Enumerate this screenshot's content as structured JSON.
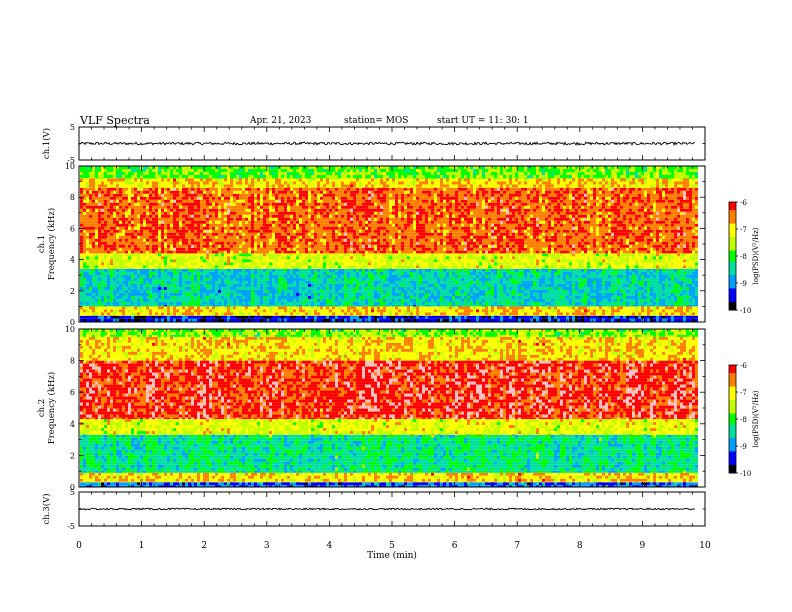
{
  "header": {
    "title": "VLF Spectra",
    "date": "Apr. 21, 2023",
    "station": "station= MOS",
    "start": "start UT =  11: 30: 1"
  },
  "colors": {
    "scale": [
      "#000000",
      "#0000ff",
      "#00a0ff",
      "#00e0a0",
      "#00ff00",
      "#c0ff00",
      "#ffff00",
      "#ff8000",
      "#ff0000",
      "#ffc0c0",
      "#ffffff"
    ]
  },
  "chart_data": [
    {
      "type": "line",
      "panel": "ch1-waveform",
      "ylabel": "ch.1(V)",
      "ylim": [
        -5,
        5
      ],
      "yticks": [
        "5",
        "-5"
      ],
      "xlim": [
        0,
        10
      ],
      "baseline_value": 0,
      "noise_amplitude": 0.4,
      "x_end": 9.85
    },
    {
      "type": "heatmap",
      "panel": "ch1-spectrogram",
      "ylabel": "ch.1\nFrequency (kHz)",
      "ylim": [
        0,
        10
      ],
      "yticks": [
        "0",
        "2",
        "4",
        "6",
        "8",
        "10"
      ],
      "xlim": [
        0,
        10
      ],
      "x_end": 9.85,
      "colorbar": {
        "label": "log(PSD)(V²/Hz)",
        "range": [
          -10,
          -6
        ],
        "ticks": [
          "-6",
          "-7",
          "-8",
          "-9",
          "-10"
        ]
      },
      "bands": [
        {
          "f_from": 0,
          "f_to": 0.4,
          "level": -9.5
        },
        {
          "f_from": 0.4,
          "f_to": 1.0,
          "level": -6.9
        },
        {
          "f_from": 1.0,
          "f_to": 3.4,
          "level": -8.6
        },
        {
          "f_from": 3.4,
          "f_to": 4.4,
          "level": -7.3
        },
        {
          "f_from": 4.4,
          "f_to": 8.6,
          "level": -6.35
        },
        {
          "f_from": 8.6,
          "f_to": 9.2,
          "level": -6.9
        },
        {
          "f_from": 9.2,
          "f_to": 10,
          "level": -7.8
        }
      ]
    },
    {
      "type": "heatmap",
      "panel": "ch2-spectrogram",
      "ylabel": "ch.2\nFrequency (kHz)",
      "ylim": [
        0,
        10
      ],
      "yticks": [
        "0",
        "2",
        "4",
        "6",
        "8",
        "10"
      ],
      "xlim": [
        0,
        10
      ],
      "x_end": 9.85,
      "colorbar": {
        "label": "log(PSD)(V²/Hz)",
        "range": [
          -10,
          -6
        ],
        "ticks": [
          "-6",
          "-7",
          "-8",
          "-9",
          "-10"
        ]
      },
      "bands": [
        {
          "f_from": 0,
          "f_to": 0.3,
          "level": -9.2
        },
        {
          "f_from": 0.3,
          "f_to": 0.9,
          "level": -6.9
        },
        {
          "f_from": 0.9,
          "f_to": 3.3,
          "level": -8.4
        },
        {
          "f_from": 3.3,
          "f_to": 4.3,
          "level": -7.2
        },
        {
          "f_from": 4.3,
          "f_to": 8.0,
          "level": -6.05
        },
        {
          "f_from": 8.0,
          "f_to": 9.5,
          "level": -6.9
        },
        {
          "f_from": 9.5,
          "f_to": 10,
          "level": -7.7
        }
      ]
    },
    {
      "type": "line",
      "panel": "ch3-waveform",
      "ylabel": "ch.3(V)",
      "ylim": [
        -5,
        5
      ],
      "yticks": [
        "5",
        "-5"
      ],
      "xlim": [
        0,
        10
      ],
      "xticks": [
        "0",
        "1",
        "2",
        "3",
        "4",
        "5",
        "6",
        "7",
        "8",
        "9",
        "10"
      ],
      "xlabel": "Time (min)",
      "baseline_value": 0,
      "noise_amplitude": 0.25,
      "x_end": 9.85
    }
  ]
}
